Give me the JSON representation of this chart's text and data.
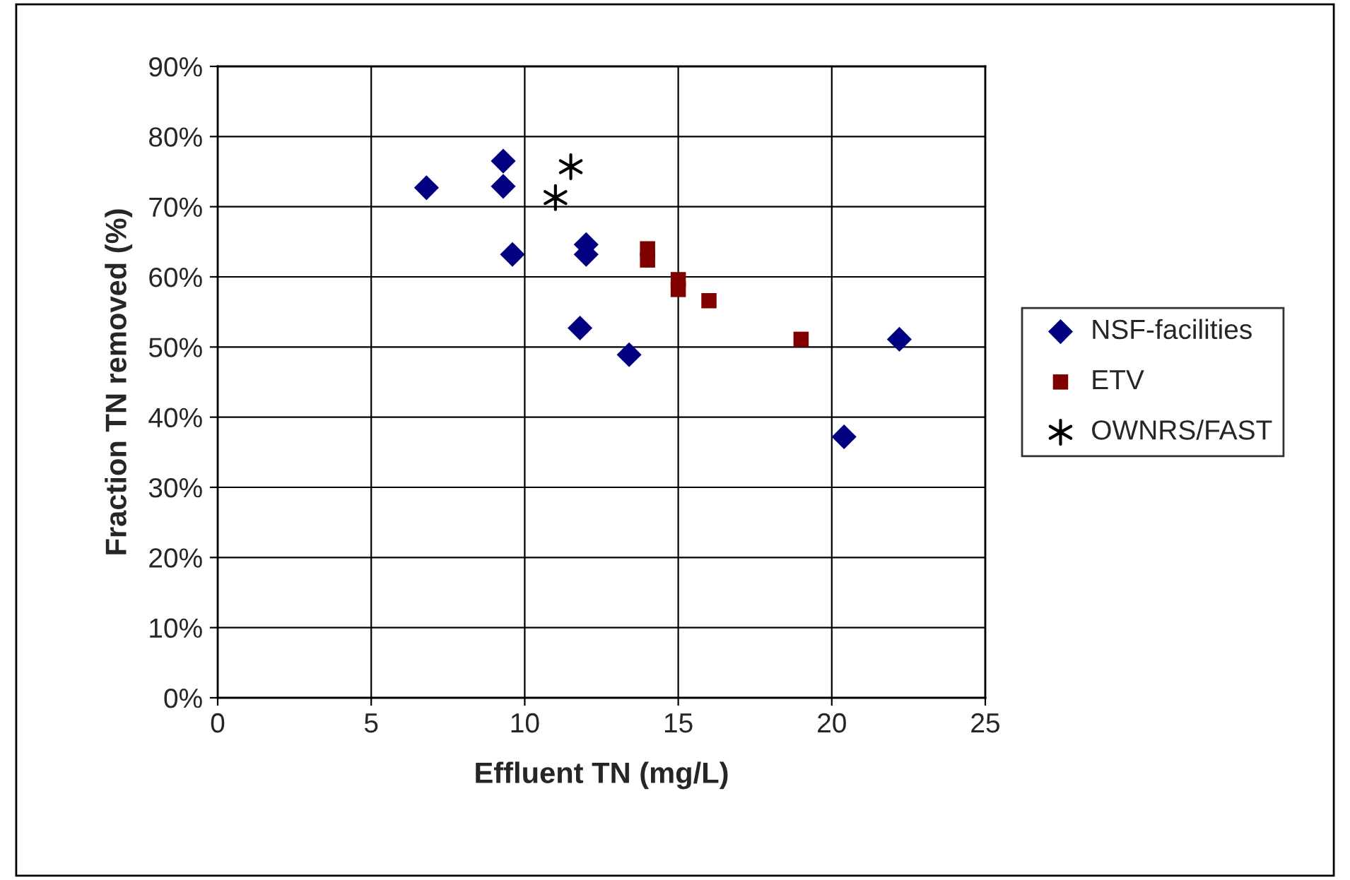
{
  "chart_data": {
    "type": "scatter",
    "xlabel": "Effluent TN (mg/L)",
    "ylabel": "Fraction TN removed (%)",
    "xlim": [
      0,
      25
    ],
    "xticks": [
      0,
      5,
      10,
      15,
      20,
      25
    ],
    "ylim": [
      0,
      90
    ],
    "yticks": [
      {
        "value": 0,
        "label": "0%"
      },
      {
        "value": 10,
        "label": "10%"
      },
      {
        "value": 20,
        "label": "20%"
      },
      {
        "value": 30,
        "label": "30%"
      },
      {
        "value": 40,
        "label": "40%"
      },
      {
        "value": 50,
        "label": "50%"
      },
      {
        "value": 60,
        "label": "60%"
      },
      {
        "value": 70,
        "label": "70%"
      },
      {
        "value": 80,
        "label": "80%"
      },
      {
        "value": 90,
        "label": "90%"
      }
    ],
    "grid": true,
    "legend": "right",
    "series": [
      {
        "name": "NSF-facilities",
        "color": "#000080",
        "marker": "diamond",
        "x": [
          6.8,
          9.3,
          9.3,
          9.6,
          12.0,
          12.0,
          11.8,
          13.4,
          22.2,
          20.4
        ],
        "values": [
          72.7,
          76.5,
          72.9,
          63.2,
          64.6,
          63.2,
          52.7,
          48.9,
          51.1,
          37.2
        ]
      },
      {
        "name": "ETV",
        "color": "#800000",
        "marker": "square",
        "x": [
          14.0,
          14.0,
          15.0,
          15.0,
          16.0,
          19.0
        ],
        "values": [
          64.0,
          62.4,
          59.6,
          58.2,
          56.6,
          51.1
        ]
      },
      {
        "name": "OWNRS/FAST",
        "color": "#000000",
        "marker": "cross",
        "x": [
          11.5,
          11.0
        ],
        "values": [
          75.7,
          71.3
        ]
      }
    ]
  }
}
